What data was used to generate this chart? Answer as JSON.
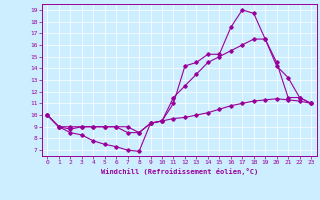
{
  "xlabel": "Windchill (Refroidissement éolien,°C)",
  "bg_color": "#cceeff",
  "line_color": "#990099",
  "xlim": [
    -0.5,
    23.5
  ],
  "ylim": [
    6.5,
    19.5
  ],
  "xticks": [
    0,
    1,
    2,
    3,
    4,
    5,
    6,
    7,
    8,
    9,
    10,
    11,
    12,
    13,
    14,
    15,
    16,
    17,
    18,
    19,
    20,
    21,
    22,
    23
  ],
  "yticks": [
    7,
    8,
    9,
    10,
    11,
    12,
    13,
    14,
    15,
    16,
    17,
    18,
    19
  ],
  "line1_x": [
    0,
    1,
    2,
    3,
    4,
    5,
    6,
    7,
    8,
    9,
    10,
    11,
    12,
    13,
    14,
    15,
    16,
    17,
    18,
    19,
    20,
    21,
    22,
    23
  ],
  "line1_y": [
    10.0,
    9.0,
    8.5,
    8.3,
    7.8,
    7.5,
    7.3,
    7.0,
    6.9,
    9.3,
    9.5,
    11.0,
    14.2,
    14.5,
    15.2,
    15.2,
    17.5,
    19.0,
    18.7,
    16.5,
    14.2,
    13.2,
    11.5,
    11.0
  ],
  "line2_x": [
    0,
    1,
    2,
    3,
    4,
    5,
    6,
    7,
    8,
    9,
    10,
    11,
    12,
    13,
    14,
    15,
    16,
    17,
    18,
    19,
    20,
    21,
    22,
    23
  ],
  "line2_y": [
    10.0,
    9.0,
    8.8,
    9.0,
    9.0,
    9.0,
    9.0,
    9.0,
    8.5,
    9.3,
    9.5,
    11.5,
    12.5,
    13.5,
    14.5,
    15.0,
    15.5,
    16.0,
    16.5,
    16.5,
    14.5,
    11.5,
    11.5,
    11.0
  ],
  "line3_x": [
    0,
    1,
    2,
    3,
    4,
    5,
    6,
    7,
    8,
    9,
    10,
    11,
    12,
    13,
    14,
    15,
    16,
    17,
    18,
    19,
    20,
    21,
    22,
    23
  ],
  "line3_y": [
    10.0,
    9.0,
    9.0,
    9.0,
    9.0,
    9.0,
    9.0,
    8.5,
    8.5,
    9.3,
    9.5,
    9.7,
    9.8,
    10.0,
    10.2,
    10.5,
    10.8,
    11.0,
    11.2,
    11.3,
    11.4,
    11.3,
    11.2,
    11.0
  ]
}
